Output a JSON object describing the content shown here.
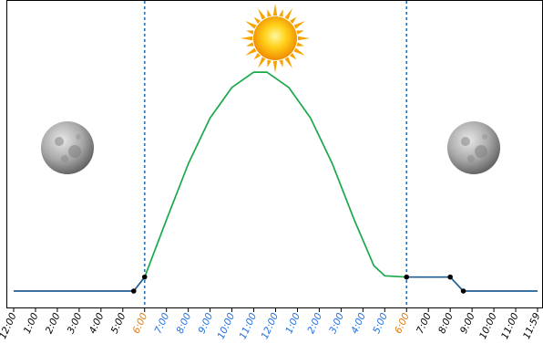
{
  "colors": {
    "frame": "#000000",
    "night_line": "#1f5f96",
    "day_curve": "#1aa84a",
    "divider": "#2a6fb0",
    "label_night": "#000000",
    "label_transition": "#e07a10",
    "label_day": "#1f6fe0"
  },
  "icons": {
    "sun": "sun-icon",
    "moon_left": "moon-icon",
    "moon_right": "moon-icon"
  },
  "chart_data": {
    "type": "line",
    "x_ticks": [
      {
        "label": "12:00",
        "kind": "night"
      },
      {
        "label": "1:00",
        "kind": "night"
      },
      {
        "label": "2:00",
        "kind": "night"
      },
      {
        "label": "3:00",
        "kind": "night"
      },
      {
        "label": "4:00",
        "kind": "night"
      },
      {
        "label": "5:00",
        "kind": "night"
      },
      {
        "label": "6:00",
        "kind": "transition"
      },
      {
        "label": "7:00",
        "kind": "day"
      },
      {
        "label": "8:00",
        "kind": "day"
      },
      {
        "label": "9:00",
        "kind": "day"
      },
      {
        "label": "10:00",
        "kind": "day"
      },
      {
        "label": "11:00",
        "kind": "day"
      },
      {
        "label": "12:00",
        "kind": "day"
      },
      {
        "label": "1:00",
        "kind": "day"
      },
      {
        "label": "2:00",
        "kind": "day"
      },
      {
        "label": "3:00",
        "kind": "day"
      },
      {
        "label": "4:00",
        "kind": "day"
      },
      {
        "label": "5:00",
        "kind": "day"
      },
      {
        "label": "6:00",
        "kind": "transition"
      },
      {
        "label": "7:00",
        "kind": "night"
      },
      {
        "label": "8:00",
        "kind": "night"
      },
      {
        "label": "9:00",
        "kind": "night"
      },
      {
        "label": "10:00",
        "kind": "night"
      },
      {
        "label": "11:00",
        "kind": "night"
      },
      {
        "label": "11:59",
        "kind": "night"
      }
    ],
    "dividers_hours": [
      6,
      18
    ],
    "ylim": [
      0,
      1
    ],
    "series": [
      {
        "role": "night",
        "points": [
          [
            0,
            0.0
          ],
          [
            5.5,
            0.0
          ],
          [
            6.0,
            0.055
          ]
        ]
      },
      {
        "role": "day",
        "points": [
          [
            6.0,
            0.055
          ],
          [
            7.0,
            0.28
          ],
          [
            8.0,
            0.5
          ],
          [
            9.0,
            0.68
          ],
          [
            10.0,
            0.8
          ],
          [
            11.0,
            0.86
          ],
          [
            11.6,
            0.86
          ],
          [
            12.6,
            0.8
          ],
          [
            13.6,
            0.68
          ],
          [
            14.6,
            0.5
          ],
          [
            15.6,
            0.28
          ],
          [
            16.5,
            0.1
          ],
          [
            17.0,
            0.06
          ],
          [
            18.0,
            0.055
          ]
        ]
      },
      {
        "role": "night",
        "points": [
          [
            18.0,
            0.055
          ],
          [
            20.0,
            0.055
          ],
          [
            20.6,
            0.0
          ],
          [
            24.0,
            0.0
          ]
        ]
      }
    ],
    "markers": [
      [
        5.5,
        0.0
      ],
      [
        6.0,
        0.055
      ],
      [
        18.0,
        0.055
      ],
      [
        20.0,
        0.055
      ],
      [
        20.6,
        0.0
      ]
    ]
  }
}
